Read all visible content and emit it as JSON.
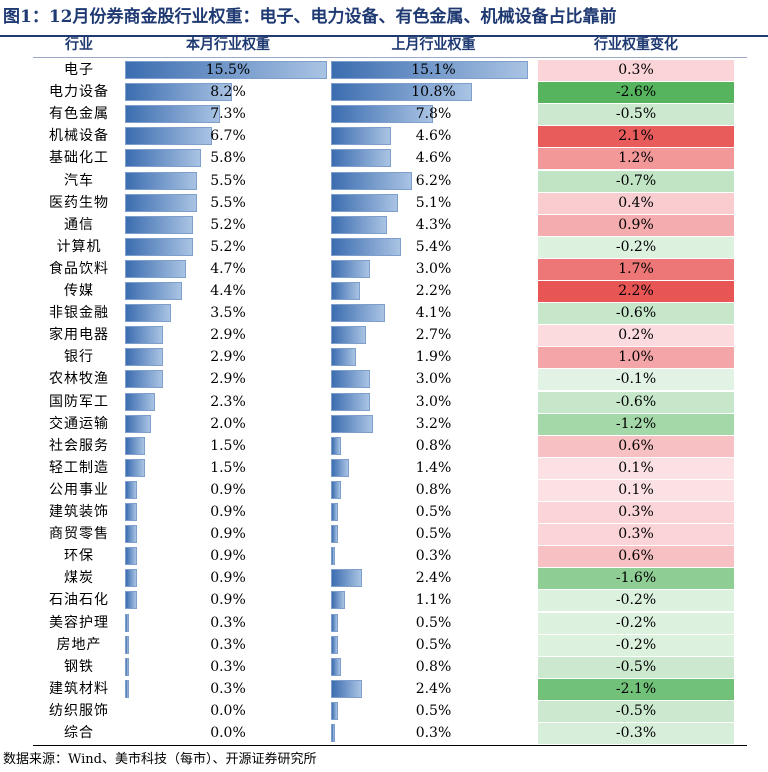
{
  "title": "图1：12月份券商金股行业权重：电子、电力设备、有色金属、机械设备占比靠前",
  "source": "数据来源：Wind、美市科技（每市）、开源证券研究所",
  "colors": {
    "bar_dark": "#3c6db0",
    "bar_light": "#a9c3e3",
    "title": "#1f3a72",
    "pos": "#e25c5c",
    "neg": "#56b45e"
  },
  "chart_data": {
    "type": "table",
    "columns": [
      "行业",
      "本月行业权重",
      "上月行业权重",
      "行业权重变化"
    ],
    "rows": [
      {
        "industry": "电子",
        "current": "15.5%",
        "previous": "15.1%",
        "change": "0.3%",
        "c": 15.5,
        "p": 15.1,
        "d": 0.3
      },
      {
        "industry": "电力设备",
        "current": "8.2%",
        "previous": "10.8%",
        "change": "-2.6%",
        "c": 8.2,
        "p": 10.8,
        "d": -2.6
      },
      {
        "industry": "有色金属",
        "current": "7.3%",
        "previous": "7.8%",
        "change": "-0.5%",
        "c": 7.3,
        "p": 7.8,
        "d": -0.5
      },
      {
        "industry": "机械设备",
        "current": "6.7%",
        "previous": "4.6%",
        "change": "2.1%",
        "c": 6.7,
        "p": 4.6,
        "d": 2.1
      },
      {
        "industry": "基础化工",
        "current": "5.8%",
        "previous": "4.6%",
        "change": "1.2%",
        "c": 5.8,
        "p": 4.6,
        "d": 1.2
      },
      {
        "industry": "汽车",
        "current": "5.5%",
        "previous": "6.2%",
        "change": "-0.7%",
        "c": 5.5,
        "p": 6.2,
        "d": -0.7
      },
      {
        "industry": "医药生物",
        "current": "5.5%",
        "previous": "5.1%",
        "change": "0.4%",
        "c": 5.5,
        "p": 5.1,
        "d": 0.4
      },
      {
        "industry": "通信",
        "current": "5.2%",
        "previous": "4.3%",
        "change": "0.9%",
        "c": 5.2,
        "p": 4.3,
        "d": 0.9
      },
      {
        "industry": "计算机",
        "current": "5.2%",
        "previous": "5.4%",
        "change": "-0.2%",
        "c": 5.2,
        "p": 5.4,
        "d": -0.2
      },
      {
        "industry": "食品饮料",
        "current": "4.7%",
        "previous": "3.0%",
        "change": "1.7%",
        "c": 4.7,
        "p": 3.0,
        "d": 1.7
      },
      {
        "industry": "传媒",
        "current": "4.4%",
        "previous": "2.2%",
        "change": "2.2%",
        "c": 4.4,
        "p": 2.2,
        "d": 2.2
      },
      {
        "industry": "非银金融",
        "current": "3.5%",
        "previous": "4.1%",
        "change": "-0.6%",
        "c": 3.5,
        "p": 4.1,
        "d": -0.6
      },
      {
        "industry": "家用电器",
        "current": "2.9%",
        "previous": "2.7%",
        "change": "0.2%",
        "c": 2.9,
        "p": 2.7,
        "d": 0.2
      },
      {
        "industry": "银行",
        "current": "2.9%",
        "previous": "1.9%",
        "change": "1.0%",
        "c": 2.9,
        "p": 1.9,
        "d": 1.0
      },
      {
        "industry": "农林牧渔",
        "current": "2.9%",
        "previous": "3.0%",
        "change": "-0.1%",
        "c": 2.9,
        "p": 3.0,
        "d": -0.1
      },
      {
        "industry": "国防军工",
        "current": "2.3%",
        "previous": "3.0%",
        "change": "-0.6%",
        "c": 2.3,
        "p": 3.0,
        "d": -0.6
      },
      {
        "industry": "交通运输",
        "current": "2.0%",
        "previous": "3.2%",
        "change": "-1.2%",
        "c": 2.0,
        "p": 3.2,
        "d": -1.2
      },
      {
        "industry": "社会服务",
        "current": "1.5%",
        "previous": "0.8%",
        "change": "0.6%",
        "c": 1.5,
        "p": 0.8,
        "d": 0.6
      },
      {
        "industry": "轻工制造",
        "current": "1.5%",
        "previous": "1.4%",
        "change": "0.1%",
        "c": 1.5,
        "p": 1.4,
        "d": 0.1
      },
      {
        "industry": "公用事业",
        "current": "0.9%",
        "previous": "0.8%",
        "change": "0.1%",
        "c": 0.9,
        "p": 0.8,
        "d": 0.1
      },
      {
        "industry": "建筑装饰",
        "current": "0.9%",
        "previous": "0.5%",
        "change": "0.3%",
        "c": 0.9,
        "p": 0.5,
        "d": 0.3
      },
      {
        "industry": "商贸零售",
        "current": "0.9%",
        "previous": "0.5%",
        "change": "0.3%",
        "c": 0.9,
        "p": 0.5,
        "d": 0.3
      },
      {
        "industry": "环保",
        "current": "0.9%",
        "previous": "0.3%",
        "change": "0.6%",
        "c": 0.9,
        "p": 0.3,
        "d": 0.6
      },
      {
        "industry": "煤炭",
        "current": "0.9%",
        "previous": "2.4%",
        "change": "-1.6%",
        "c": 0.9,
        "p": 2.4,
        "d": -1.6
      },
      {
        "industry": "石油石化",
        "current": "0.9%",
        "previous": "1.1%",
        "change": "-0.2%",
        "c": 0.9,
        "p": 1.1,
        "d": -0.2
      },
      {
        "industry": "美容护理",
        "current": "0.3%",
        "previous": "0.5%",
        "change": "-0.2%",
        "c": 0.3,
        "p": 0.5,
        "d": -0.2
      },
      {
        "industry": "房地产",
        "current": "0.3%",
        "previous": "0.5%",
        "change": "-0.2%",
        "c": 0.3,
        "p": 0.5,
        "d": -0.2
      },
      {
        "industry": "钢铁",
        "current": "0.3%",
        "previous": "0.8%",
        "change": "-0.5%",
        "c": 0.3,
        "p": 0.8,
        "d": -0.5
      },
      {
        "industry": "建筑材料",
        "current": "0.3%",
        "previous": "2.4%",
        "change": "-2.1%",
        "c": 0.3,
        "p": 2.4,
        "d": -2.1
      },
      {
        "industry": "纺织服饰",
        "current": "0.0%",
        "previous": "0.5%",
        "change": "-0.5%",
        "c": 0.0,
        "p": 0.5,
        "d": -0.5
      },
      {
        "industry": "综合",
        "current": "0.0%",
        "previous": "0.3%",
        "change": "-0.3%",
        "c": 0.0,
        "p": 0.3,
        "d": -0.3
      }
    ]
  }
}
